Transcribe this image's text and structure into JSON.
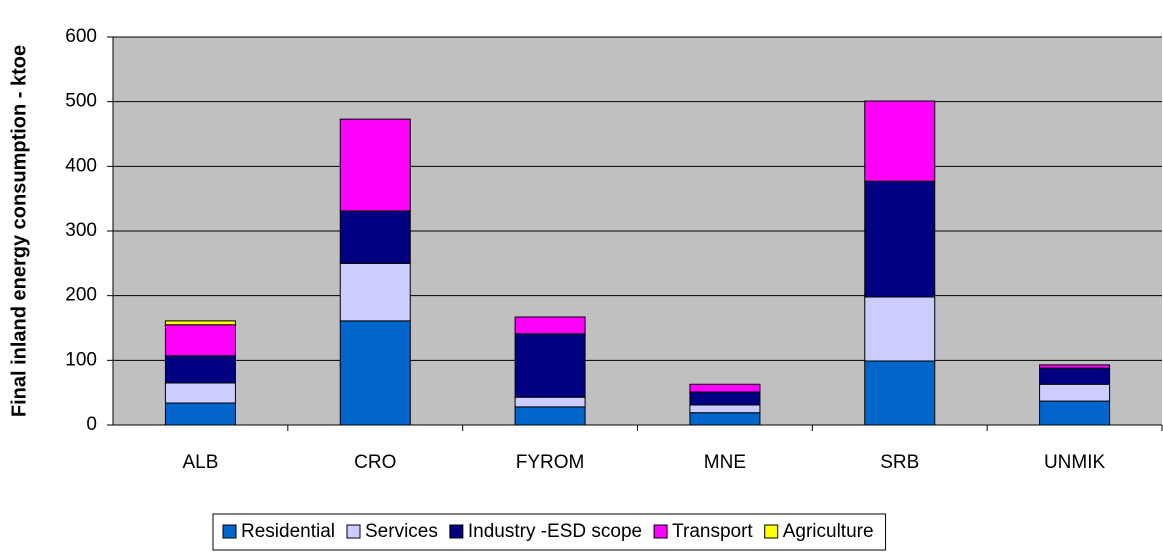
{
  "chart_data": {
    "type": "stacked_bar",
    "y_label": "Final inland energy consumption - ktoe",
    "categories": [
      "ALB",
      "CRO",
      "FYROM",
      "MNE",
      "SRB",
      "UNMIK"
    ],
    "series": [
      {
        "name": "Residential",
        "color": "#0066cc",
        "values": [
          34,
          161,
          28,
          19,
          99,
          37
        ]
      },
      {
        "name": "Services",
        "color": "#ccccff",
        "values": [
          31,
          89,
          15,
          12,
          99,
          26
        ]
      },
      {
        "name": "Industry -ESD scope",
        "color": "#000080",
        "values": [
          42,
          81,
          98,
          20,
          179,
          25
        ]
      },
      {
        "name": "Transport",
        "color": "#ff00ff",
        "values": [
          48,
          142,
          26,
          12,
          124,
          5
        ]
      },
      {
        "name": "Agriculture",
        "color": "#ffff00",
        "values": [
          6,
          0,
          0,
          0,
          0,
          0
        ]
      }
    ],
    "ylim": [
      0,
      600
    ],
    "yticks": [
      0,
      100,
      200,
      300,
      400,
      500,
      600
    ],
    "grid": true,
    "legend": "bottom",
    "background": "#c0c0c0"
  }
}
